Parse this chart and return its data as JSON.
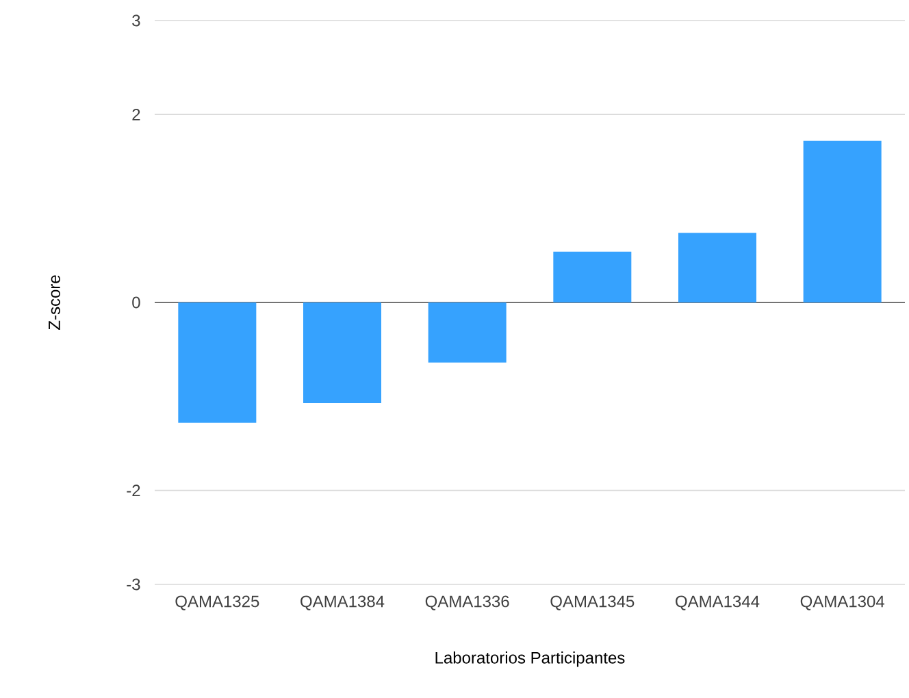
{
  "chart_data": {
    "type": "bar",
    "xlabel": "Laboratorios Participantes",
    "ylabel": "Z-score",
    "categories": [
      "QAMA1325",
      "QAMA1384",
      "QAMA1336",
      "QAMA1345",
      "QAMA1344",
      "QAMA1304"
    ],
    "values": [
      -1.28,
      -1.07,
      -0.64,
      0.54,
      0.74,
      1.72
    ],
    "color": "#36a2fe",
    "ylim": [
      -3,
      3
    ],
    "yticks": [
      3,
      2,
      0,
      -2,
      -3
    ],
    "grid": "y"
  }
}
